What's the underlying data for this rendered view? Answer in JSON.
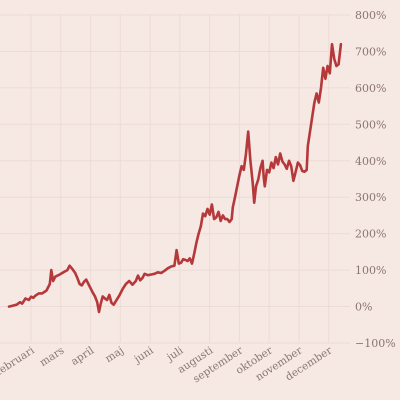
{
  "chart_data": {
    "type": "line",
    "title": "",
    "xlabel": "",
    "ylabel": "",
    "ylim": [
      -100,
      800
    ],
    "grid": true,
    "legend": "none",
    "yticks": [
      -100,
      0,
      100,
      200,
      300,
      400,
      500,
      600,
      700,
      800
    ],
    "ytick_labels": [
      "−100%",
      "0%",
      "100%",
      "200%",
      "300%",
      "400%",
      "500%",
      "600%",
      "700%",
      "800%"
    ],
    "xtick_labels": [
      "februari",
      "mars",
      "april",
      "maj",
      "juni",
      "juli",
      "augusti",
      "september",
      "oktober",
      "november",
      "december"
    ],
    "series": [
      {
        "color": "#b5383b",
        "points": [
          [
            0.0,
            0
          ],
          [
            0.2,
            3
          ],
          [
            0.35,
            5
          ],
          [
            0.5,
            12
          ],
          [
            0.6,
            8
          ],
          [
            0.75,
            22
          ],
          [
            0.9,
            18
          ],
          [
            1.0,
            27
          ],
          [
            1.1,
            24
          ],
          [
            1.2,
            30
          ],
          [
            1.35,
            36
          ],
          [
            1.5,
            36
          ],
          [
            1.6,
            40
          ],
          [
            1.7,
            44
          ],
          [
            1.85,
            62
          ],
          [
            1.92,
            100
          ],
          [
            2.0,
            70
          ],
          [
            2.1,
            82
          ],
          [
            2.3,
            88
          ],
          [
            2.5,
            95
          ],
          [
            2.65,
            100
          ],
          [
            2.75,
            112
          ],
          [
            2.85,
            105
          ],
          [
            3.0,
            92
          ],
          [
            3.1,
            78
          ],
          [
            3.2,
            62
          ],
          [
            3.3,
            58
          ],
          [
            3.4,
            68
          ],
          [
            3.5,
            74
          ],
          [
            3.6,
            62
          ],
          [
            3.7,
            50
          ],
          [
            3.8,
            38
          ],
          [
            3.9,
            28
          ],
          [
            4.0,
            12
          ],
          [
            4.08,
            -15
          ],
          [
            4.15,
            5
          ],
          [
            4.25,
            28
          ],
          [
            4.35,
            22
          ],
          [
            4.45,
            18
          ],
          [
            4.55,
            32
          ],
          [
            4.65,
            10
          ],
          [
            4.75,
            5
          ],
          [
            4.85,
            15
          ],
          [
            5.0,
            30
          ],
          [
            5.15,
            48
          ],
          [
            5.3,
            62
          ],
          [
            5.45,
            70
          ],
          [
            5.6,
            60
          ],
          [
            5.75,
            70
          ],
          [
            5.85,
            85
          ],
          [
            5.95,
            72
          ],
          [
            6.05,
            78
          ],
          [
            6.15,
            90
          ],
          [
            6.3,
            86
          ],
          [
            6.45,
            88
          ],
          [
            6.6,
            90
          ],
          [
            6.75,
            94
          ],
          [
            6.9,
            92
          ],
          [
            7.05,
            98
          ],
          [
            7.2,
            105
          ],
          [
            7.35,
            110
          ],
          [
            7.5,
            112
          ],
          [
            7.6,
            155
          ],
          [
            7.7,
            118
          ],
          [
            7.8,
            120
          ],
          [
            7.9,
            130
          ],
          [
            8.0,
            128
          ],
          [
            8.1,
            125
          ],
          [
            8.2,
            132
          ],
          [
            8.3,
            118
          ],
          [
            8.4,
            145
          ],
          [
            8.5,
            175
          ],
          [
            8.6,
            200
          ],
          [
            8.7,
            220
          ],
          [
            8.8,
            255
          ],
          [
            8.9,
            248
          ],
          [
            9.0,
            268
          ],
          [
            9.1,
            252
          ],
          [
            9.2,
            280
          ],
          [
            9.3,
            240
          ],
          [
            9.4,
            245
          ],
          [
            9.5,
            260
          ],
          [
            9.6,
            235
          ],
          [
            9.7,
            250
          ],
          [
            9.8,
            240
          ],
          [
            9.9,
            240
          ],
          [
            10.0,
            232
          ],
          [
            10.1,
            240
          ],
          [
            10.15,
            272
          ],
          [
            10.25,
            300
          ],
          [
            10.35,
            330
          ],
          [
            10.45,
            360
          ],
          [
            10.55,
            385
          ],
          [
            10.65,
            375
          ],
          [
            10.75,
            420
          ],
          [
            10.85,
            480
          ],
          [
            10.95,
            400
          ],
          [
            11.05,
            340
          ],
          [
            11.12,
            285
          ],
          [
            11.2,
            330
          ],
          [
            11.3,
            348
          ],
          [
            11.4,
            380
          ],
          [
            11.5,
            400
          ],
          [
            11.55,
            355
          ],
          [
            11.6,
            330
          ],
          [
            11.7,
            375
          ],
          [
            11.8,
            368
          ],
          [
            11.9,
            395
          ],
          [
            12.0,
            380
          ],
          [
            12.1,
            410
          ],
          [
            12.2,
            390
          ],
          [
            12.3,
            420
          ],
          [
            12.4,
            398
          ],
          [
            12.5,
            390
          ],
          [
            12.6,
            378
          ],
          [
            12.7,
            400
          ],
          [
            12.8,
            385
          ],
          [
            12.9,
            345
          ],
          [
            13.0,
            370
          ],
          [
            13.1,
            395
          ],
          [
            13.2,
            388
          ],
          [
            13.3,
            372
          ],
          [
            13.4,
            370
          ],
          [
            13.5,
            375
          ],
          [
            13.55,
            440
          ],
          [
            13.65,
            480
          ],
          [
            13.75,
            520
          ],
          [
            13.85,
            560
          ],
          [
            13.95,
            585
          ],
          [
            14.05,
            560
          ],
          [
            14.15,
            600
          ],
          [
            14.25,
            655
          ],
          [
            14.35,
            625
          ],
          [
            14.45,
            660
          ],
          [
            14.55,
            640
          ],
          [
            14.65,
            720
          ],
          [
            14.75,
            680
          ],
          [
            14.85,
            660
          ],
          [
            14.95,
            665
          ],
          [
            15.05,
            720
          ]
        ]
      }
    ]
  }
}
